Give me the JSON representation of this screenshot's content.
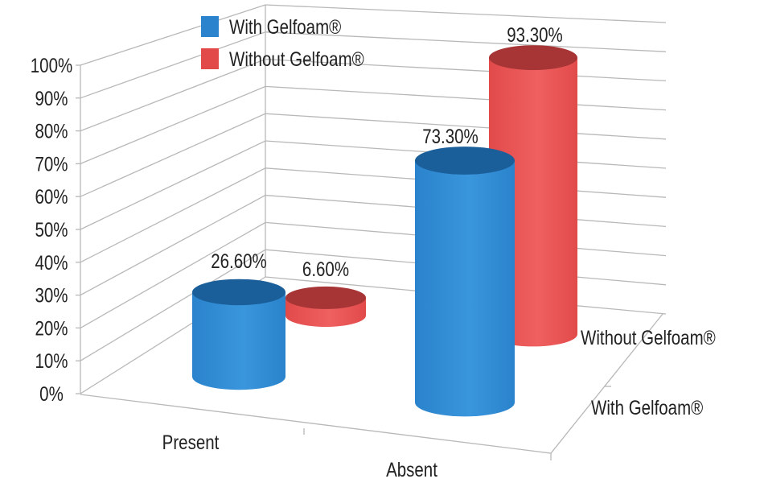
{
  "chart_data": {
    "type": "bar",
    "subtype": "3d-cylinder",
    "categories": [
      "Present",
      "Absent"
    ],
    "series": [
      {
        "name": "With Gelfoam®",
        "values": [
          26.6,
          73.3
        ],
        "labels": [
          "26.60%",
          "73.30%"
        ],
        "color": "#2a83cc"
      },
      {
        "name": "Without Gelfoam®",
        "values": [
          6.6,
          93.3
        ],
        "labels": [
          "6.60%",
          "93.30%"
        ],
        "color": "#e24a4a"
      }
    ],
    "depth_labels": [
      "Without Gelfoam®",
      "With Gelfoam®"
    ],
    "yticks": [
      "0%",
      "10%",
      "20%",
      "30%",
      "40%",
      "50%",
      "60%",
      "70%",
      "80%",
      "90%",
      "100%"
    ],
    "ylim": [
      0,
      100
    ],
    "grid": true,
    "legend": "top-center",
    "title": "",
    "xlabel": "",
    "ylabel": ""
  }
}
